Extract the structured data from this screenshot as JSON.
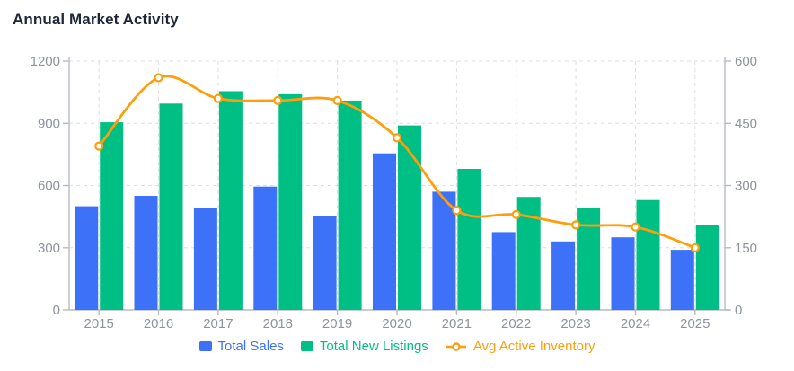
{
  "chart_data": {
    "type": "bar",
    "title": "Annual Market Activity",
    "categories": [
      "2015",
      "2016",
      "2017",
      "2018",
      "2019",
      "2020",
      "2021",
      "2022",
      "2023",
      "2024",
      "2025"
    ],
    "series": [
      {
        "name": "Total Sales",
        "type": "bar",
        "axis": "left",
        "color": "#3D72F8",
        "values": [
          500,
          550,
          490,
          595,
          455,
          755,
          570,
          375,
          330,
          350,
          290
        ]
      },
      {
        "name": "Total New Listings",
        "type": "bar",
        "axis": "left",
        "color": "#00BF85",
        "values": [
          905,
          995,
          1055,
          1040,
          1010,
          890,
          680,
          545,
          490,
          530,
          410
        ]
      },
      {
        "name": "Avg Active Inventory",
        "type": "line",
        "axis": "right",
        "color": "#FF9E0C",
        "marker": "open-circle",
        "values": [
          395,
          560,
          510,
          505,
          505,
          415,
          240,
          230,
          205,
          200,
          150
        ]
      }
    ],
    "axes": {
      "left": {
        "min": 0,
        "max": 1200,
        "ticks": [
          0,
          300,
          600,
          900,
          1200
        ]
      },
      "right": {
        "min": 0,
        "max": 600,
        "ticks": [
          0,
          150,
          300,
          450,
          600
        ]
      }
    },
    "grid": true,
    "legend_position": "bottom",
    "colors": {
      "title_text": "#1D2738",
      "tick_text": "#8E939C",
      "axis_line": "#B7BBC3",
      "grid_line": "#DCDFE4",
      "background": "#FFFFFF"
    }
  }
}
